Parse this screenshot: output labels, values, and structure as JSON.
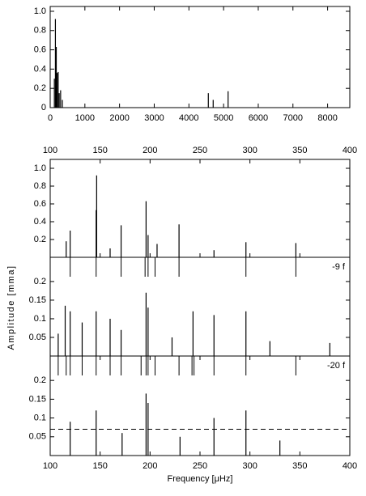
{
  "chart_data": [
    {
      "type": "stem",
      "x": [
        120,
        150,
        175,
        200,
        230,
        260,
        300,
        350,
        4560,
        4700,
        5130
      ],
      "values": [
        0.3,
        0.92,
        0.63,
        0.36,
        0.37,
        0.15,
        0.18,
        0.08,
        0.15,
        0.08,
        0.17
      ],
      "color": "#000000",
      "xlim": [
        0,
        8640
      ],
      "xticks": [
        0,
        1000,
        2000,
        3000,
        4000,
        5000,
        6000,
        7000,
        8000
      ],
      "ylim": [
        0,
        1.05
      ],
      "yticks": [
        0,
        0.2,
        0.4,
        0.6,
        0.8,
        {
          "value": 1,
          "label": "1.0"
        }
      ]
    },
    {
      "type": "stem",
      "ylabel": "Amplitude  [mma]",
      "x": [
        116,
        120,
        146,
        146.5,
        160,
        171,
        196,
        198,
        207,
        229,
        264,
        296,
        346
      ],
      "values": [
        0.18,
        0.3,
        0.53,
        0.92,
        0.1,
        0.36,
        0.63,
        0.25,
        0.15,
        0.37,
        0.08,
        0.17,
        0.16
      ],
      "color": "#000000",
      "xlim": [
        100,
        400
      ],
      "xticks": [
        100,
        150,
        200,
        250,
        300,
        350,
        400
      ],
      "ylim": [
        0,
        1.1
      ],
      "yticks": [
        0.2,
        0.4,
        0.6,
        0.8,
        {
          "value": 1,
          "label": "1.0"
        }
      ]
    },
    {
      "type": "stem",
      "annotation": "-9 f",
      "markers": [
        120,
        146,
        171,
        195,
        198,
        205,
        229,
        296,
        346
      ],
      "x": [
        108,
        115,
        120,
        132,
        146,
        160,
        171,
        196,
        198,
        222,
        243,
        264,
        296,
        320,
        380
      ],
      "values": [
        0.06,
        0.135,
        0.12,
        0.09,
        0.12,
        0.1,
        0.07,
        0.17,
        0.13,
        0.05,
        0.12,
        0.11,
        0.12,
        0.04,
        0.035
      ],
      "color": "#000000",
      "xlim": [
        100,
        400
      ],
      "ylim": [
        0,
        0.265
      ],
      "yticks": [
        0.05,
        0.1,
        0.15,
        0.2
      ]
    },
    {
      "type": "stem",
      "annotation": "-20 f",
      "xlabel": "Frequency [μHz]",
      "markers": [
        108,
        116,
        120,
        132,
        146,
        160,
        171,
        191,
        196,
        198,
        205,
        229,
        242,
        244,
        264,
        296,
        346
      ],
      "threshold": 0.07,
      "x": [
        120,
        146,
        172,
        196,
        198,
        230,
        264,
        296,
        330
      ],
      "values": [
        0.09,
        0.12,
        0.06,
        0.165,
        0.14,
        0.05,
        0.1,
        0.12,
        0.04
      ],
      "color": "#000000",
      "xlim": [
        100,
        400
      ],
      "xticks": [
        100,
        150,
        200,
        250,
        300,
        350,
        400
      ],
      "ylim": [
        0,
        0.265
      ],
      "yticks": [
        0.05,
        0.1,
        0.15,
        0.2
      ]
    }
  ]
}
